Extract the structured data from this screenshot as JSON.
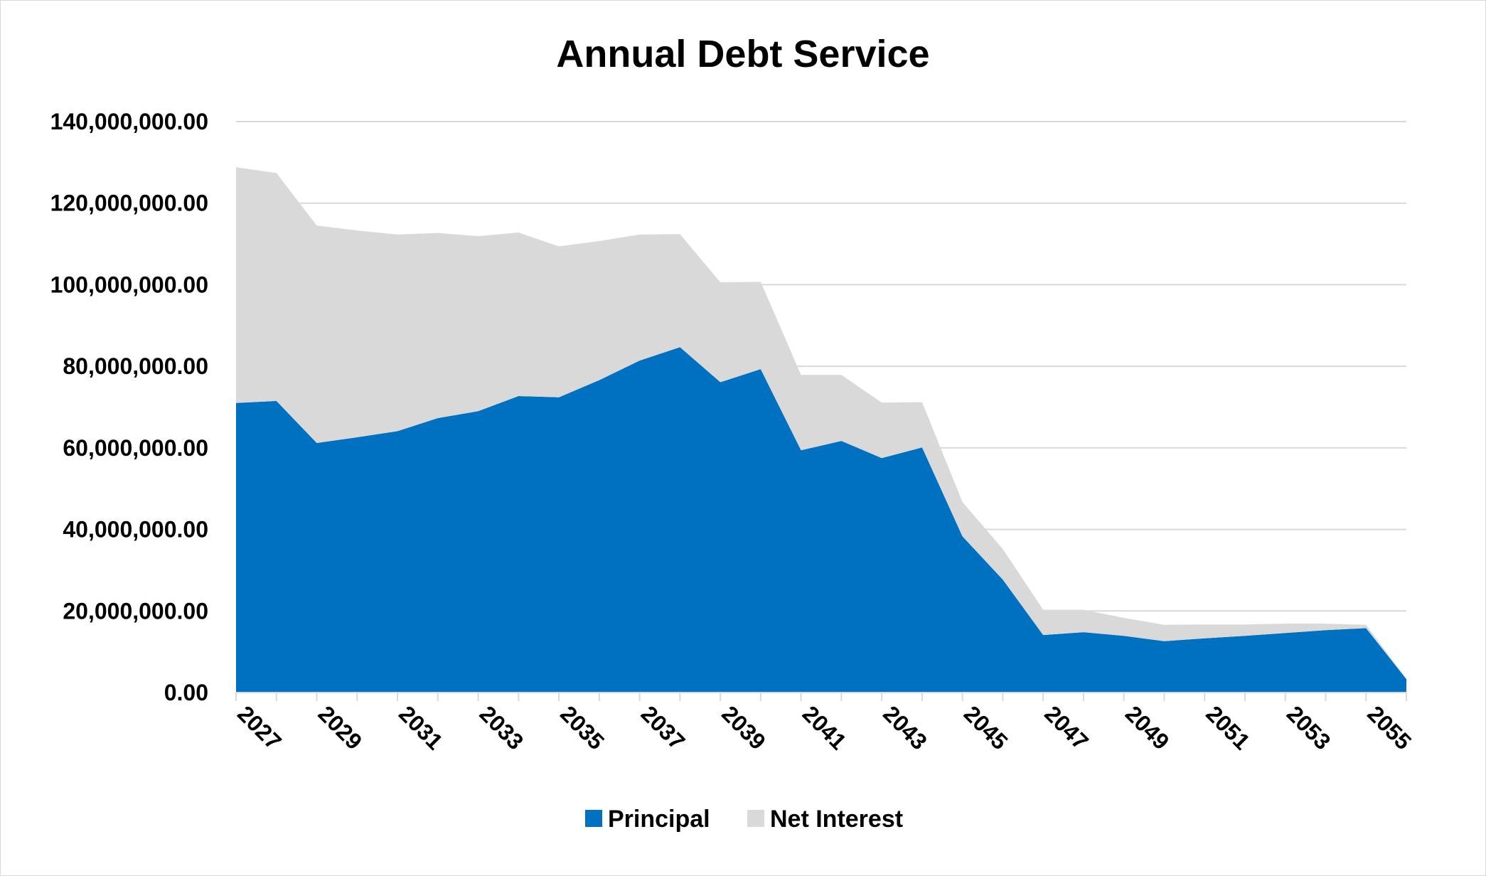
{
  "chart_data": {
    "type": "area",
    "stacked": true,
    "title": "Annual Debt Service",
    "xlabel": "",
    "ylabel": "",
    "x": [
      2027,
      2028,
      2029,
      2030,
      2031,
      2032,
      2033,
      2034,
      2035,
      2036,
      2037,
      2038,
      2039,
      2040,
      2041,
      2042,
      2043,
      2044,
      2045,
      2046,
      2047,
      2048,
      2049,
      2050,
      2051,
      2052,
      2053,
      2054,
      2055,
      2056
    ],
    "x_tick_labels": [
      "2027",
      "2029",
      "2031",
      "2033",
      "2035",
      "2037",
      "2039",
      "2041",
      "2043",
      "2045",
      "2047",
      "2049",
      "2051",
      "2053",
      "2055"
    ],
    "series": [
      {
        "name": "Principal",
        "color": "#0070c0",
        "values": [
          71000000,
          71500000,
          61200000,
          62600000,
          64100000,
          67300000,
          69000000,
          72700000,
          72400000,
          76600000,
          81400000,
          84700000,
          76100000,
          79300000,
          59400000,
          61700000,
          57500000,
          60100000,
          38300000,
          27700000,
          14100000,
          14800000,
          13900000,
          12600000,
          13300000,
          13900000,
          14600000,
          15300000,
          15800000,
          3300000
        ]
      },
      {
        "name": "Net Interest",
        "color": "#d9d9d9",
        "values": [
          57800000,
          55900000,
          53300000,
          50700000,
          48200000,
          45400000,
          42900000,
          40100000,
          37000000,
          34100000,
          30900000,
          27700000,
          24500000,
          21400000,
          18500000,
          16200000,
          13600000,
          11100000,
          8400000,
          7500000,
          6200000,
          5500000,
          4400000,
          4000000,
          3400000,
          2800000,
          2300000,
          1600000,
          800000,
          100000
        ]
      }
    ],
    "ylim": [
      0,
      140000000
    ],
    "y_ticks": [
      0,
      20000000,
      40000000,
      60000000,
      80000000,
      100000000,
      120000000,
      140000000
    ],
    "y_tick_labels": [
      "0.00",
      "20,000,000.00",
      "40,000,000.00",
      "60,000,000.00",
      "80,000,000.00",
      "100,000,000.00",
      "120,000,000.00",
      "140,000,000.00"
    ],
    "grid": true,
    "legend_position": "bottom"
  }
}
